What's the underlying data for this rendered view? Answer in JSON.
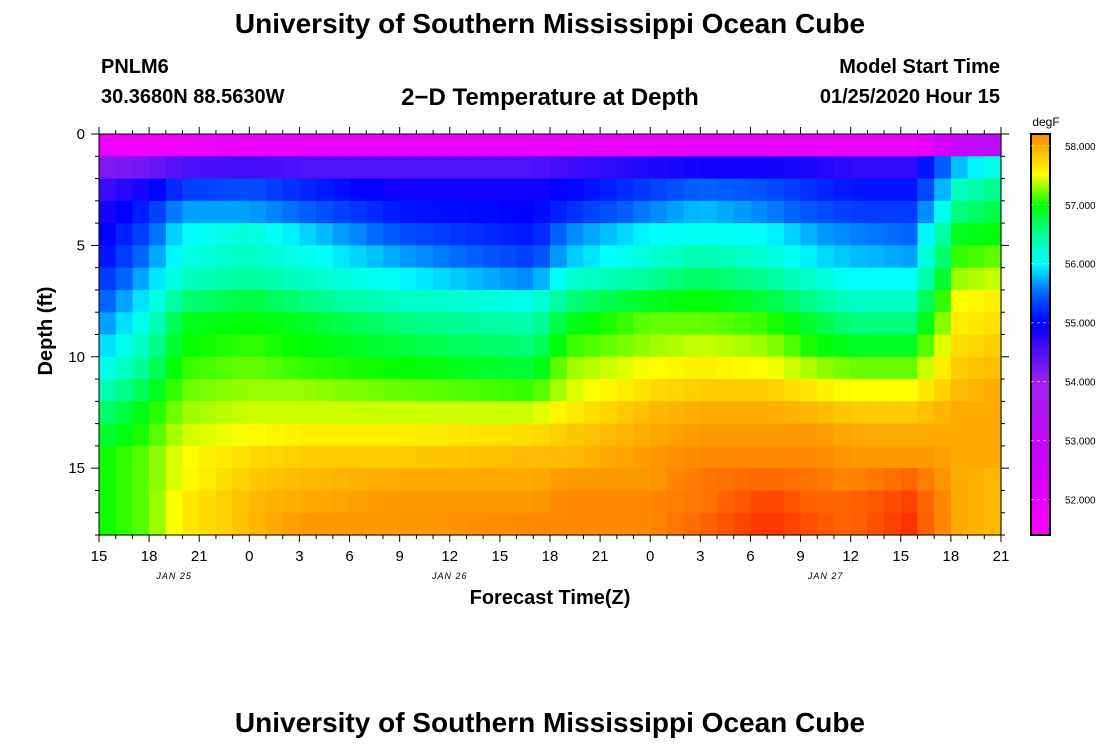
{
  "header": {
    "title": "University of Southern Mississippi Ocean Cube",
    "station": "PNLM6",
    "coords": "30.3680N 88.5630W",
    "plot_title": "2−D Temperature at Depth",
    "model_start_label": "Model Start Time",
    "model_start_value": "01/25/2020 Hour 15"
  },
  "footer": {
    "title": "University of Southern Mississippi Ocean Cube"
  },
  "chart_data": {
    "type": "heatmap",
    "title": "2−D Temperature at Depth",
    "xlabel": "Forecast Time(Z)",
    "ylabel": "Depth (ft)",
    "x_hours_range": [
      0,
      54
    ],
    "x_ticks": [
      {
        "h": 0,
        "label": "15"
      },
      {
        "h": 3,
        "label": "18"
      },
      {
        "h": 6,
        "label": "21"
      },
      {
        "h": 9,
        "label": "0"
      },
      {
        "h": 12,
        "label": "3"
      },
      {
        "h": 15,
        "label": "6"
      },
      {
        "h": 18,
        "label": "9"
      },
      {
        "h": 21,
        "label": "12"
      },
      {
        "h": 24,
        "label": "15"
      },
      {
        "h": 27,
        "label": "18"
      },
      {
        "h": 30,
        "label": "21"
      },
      {
        "h": 33,
        "label": "0"
      },
      {
        "h": 36,
        "label": "3"
      },
      {
        "h": 39,
        "label": "6"
      },
      {
        "h": 42,
        "label": "9"
      },
      {
        "h": 45,
        "label": "12"
      },
      {
        "h": 48,
        "label": "15"
      },
      {
        "h": 51,
        "label": "18"
      },
      {
        "h": 54,
        "label": "21"
      }
    ],
    "date_labels": [
      {
        "h": 4.5,
        "label": "JAN 25"
      },
      {
        "h": 21,
        "label": "JAN 26"
      },
      {
        "h": 43.5,
        "label": "JAN 27"
      }
    ],
    "ylim": [
      0,
      18
    ],
    "y_ticks": [
      0,
      5,
      10,
      15
    ],
    "colorbar": {
      "unit": "degF",
      "range": [
        51.4,
        58.2
      ],
      "ticks": [
        "52.000",
        "53.000",
        "54.000",
        "55.000",
        "56.000",
        "57.000",
        "58.000"
      ]
    },
    "depth_levels": [
      0.5,
      1.5,
      2.5,
      3.5,
      4.5,
      5.5,
      6.5,
      7.5,
      8.5,
      9.5,
      10.5,
      11.5,
      12.5,
      13.5,
      14.5,
      15.5,
      16.5,
      17.5
    ],
    "time_keyframes_hours": [
      0,
      3,
      5,
      9,
      12,
      18,
      26,
      28,
      33,
      36,
      40,
      43,
      45,
      48.5,
      50,
      51.5,
      54
    ],
    "temperature_keyframes_degF": [
      [
        51.8,
        51.8,
        51.8,
        51.9,
        51.9,
        51.9,
        51.9,
        51.9,
        51.9,
        51.9,
        51.9,
        51.9,
        51.9,
        51.9,
        52.1,
        52.8,
        53.2
      ],
      [
        54.2,
        54.3,
        54.5,
        54.6,
        54.5,
        54.5,
        54.5,
        54.6,
        54.8,
        54.9,
        54.9,
        54.8,
        54.7,
        54.7,
        55.3,
        55.8,
        56.2
      ],
      [
        54.6,
        54.9,
        55.3,
        55.4,
        55.2,
        54.9,
        54.9,
        55.0,
        55.3,
        55.5,
        55.4,
        55.2,
        55.1,
        55.1,
        55.5,
        56.3,
        56.6
      ],
      [
        54.8,
        55.2,
        55.7,
        55.7,
        55.5,
        55.1,
        55.0,
        55.2,
        55.6,
        55.8,
        55.6,
        55.4,
        55.3,
        55.3,
        55.8,
        56.6,
        56.8
      ],
      [
        54.9,
        55.4,
        56.0,
        56.2,
        55.9,
        55.4,
        55.1,
        55.6,
        56.0,
        56.1,
        56.0,
        55.7,
        55.6,
        55.5,
        56.2,
        56.9,
        57.0
      ],
      [
        55.0,
        55.6,
        56.1,
        56.3,
        56.1,
        55.7,
        55.3,
        55.8,
        56.2,
        56.4,
        56.2,
        55.9,
        55.8,
        55.7,
        56.4,
        57.1,
        57.2
      ],
      [
        55.2,
        55.8,
        56.3,
        56.5,
        56.3,
        56.0,
        55.6,
        56.2,
        56.5,
        56.7,
        56.5,
        56.2,
        56.0,
        56.0,
        56.6,
        57.3,
        57.4
      ],
      [
        55.4,
        56.0,
        56.6,
        56.8,
        56.6,
        56.3,
        56.1,
        56.6,
        56.9,
        57.0,
        56.8,
        56.5,
        56.3,
        56.3,
        56.9,
        57.5,
        57.6
      ],
      [
        55.6,
        56.2,
        56.9,
        57.0,
        56.9,
        56.6,
        56.4,
        56.9,
        57.2,
        57.2,
        57.1,
        56.8,
        56.6,
        56.6,
        57.1,
        57.6,
        57.7
      ],
      [
        55.8,
        56.4,
        57.0,
        57.1,
        57.0,
        56.8,
        56.6,
        57.1,
        57.3,
        57.4,
        57.3,
        57.0,
        56.9,
        56.9,
        57.3,
        57.7,
        57.8
      ],
      [
        56.0,
        56.6,
        57.1,
        57.2,
        57.1,
        57.0,
        56.8,
        57.3,
        57.5,
        57.6,
        57.5,
        57.3,
        57.2,
        57.2,
        57.5,
        57.8,
        57.9
      ],
      [
        56.3,
        56.8,
        57.2,
        57.3,
        57.3,
        57.2,
        57.1,
        57.4,
        57.7,
        57.8,
        57.8,
        57.6,
        57.5,
        57.5,
        57.7,
        57.9,
        58.0
      ],
      [
        56.6,
        57.0,
        57.3,
        57.4,
        57.4,
        57.4,
        57.4,
        57.6,
        57.9,
        58.0,
        58.0,
        57.9,
        57.8,
        57.8,
        57.9,
        58.0,
        58.0
      ],
      [
        56.8,
        57.1,
        57.4,
        57.5,
        57.6,
        57.6,
        57.7,
        57.8,
        58.0,
        58.1,
        58.1,
        58.1,
        58.0,
        58.0,
        58.0,
        58.0,
        58.0
      ],
      [
        57.0,
        57.2,
        57.5,
        57.7,
        57.8,
        57.8,
        57.9,
        57.9,
        58.1,
        58.2,
        58.2,
        58.2,
        58.1,
        58.1,
        58.1,
        58.0,
        58.0
      ],
      [
        57.0,
        57.2,
        57.5,
        57.8,
        57.9,
        58.0,
        58.0,
        58.1,
        58.1,
        58.3,
        58.4,
        58.3,
        58.2,
        58.4,
        58.2,
        58.0,
        57.9
      ],
      [
        57.0,
        57.2,
        57.6,
        57.9,
        58.0,
        58.1,
        58.1,
        58.2,
        58.2,
        58.3,
        58.6,
        58.4,
        58.4,
        58.6,
        58.3,
        58.0,
        57.9
      ],
      [
        57.0,
        57.2,
        57.6,
        57.9,
        58.1,
        58.1,
        58.2,
        58.2,
        58.2,
        58.4,
        58.7,
        58.5,
        58.4,
        58.7,
        58.3,
        58.0,
        57.9
      ]
    ],
    "time_step_hours": 1,
    "depth_step_ft": 1
  }
}
